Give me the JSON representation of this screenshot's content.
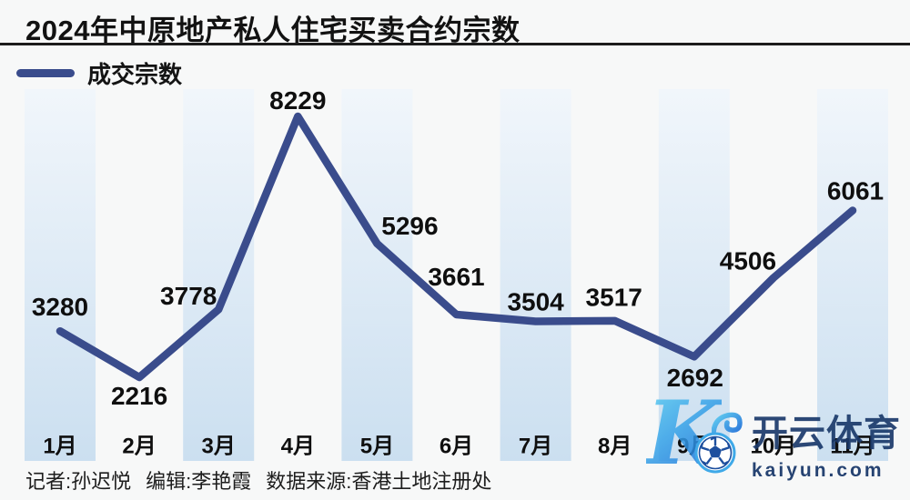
{
  "title": "2024年中原地产私人住宅买卖合约宗数",
  "legend": {
    "label": "成交宗数"
  },
  "footer": {
    "reporter": "记者:孙迟悦",
    "editor": "编辑:李艳霞",
    "source": "数据来源:香港土地注册处"
  },
  "watermark": {
    "logo_letter": "K",
    "brand": "开云体育",
    "url": "kaiyun.com",
    "icons": {
      "logo": "stylized-K",
      "ball": "soccer-ball",
      "swirl": "wave-swirl"
    }
  },
  "colors": {
    "background": "#f7f8f8",
    "line": "#3a4c8c",
    "band_top": "#f1f6fb",
    "band_bottom": "#cbdff0",
    "text": "#0f0f0f",
    "watermark_navy": "#1b3a6b",
    "watermark_blue_light": "#5fd0f2",
    "watermark_blue_dark": "#1b66d6"
  },
  "chart_data": {
    "type": "line",
    "title": "2024年中原地产私人住宅买卖合约宗数",
    "categories": [
      "1月",
      "2月",
      "3月",
      "4月",
      "5月",
      "6月",
      "7月",
      "8月",
      "9月",
      "10月",
      "11月"
    ],
    "series": [
      {
        "name": "成交宗数",
        "values": [
          3280,
          2216,
          3778,
          8229,
          5296,
          3661,
          3504,
          3517,
          2692,
          4506,
          6061
        ]
      }
    ],
    "xlabel": "",
    "ylabel": "",
    "ylim": [
      2000,
      8600
    ],
    "grid": false,
    "data_labels": true,
    "legend_position": "top-left",
    "background_stripes": "odd-month columns shaded light blue"
  }
}
